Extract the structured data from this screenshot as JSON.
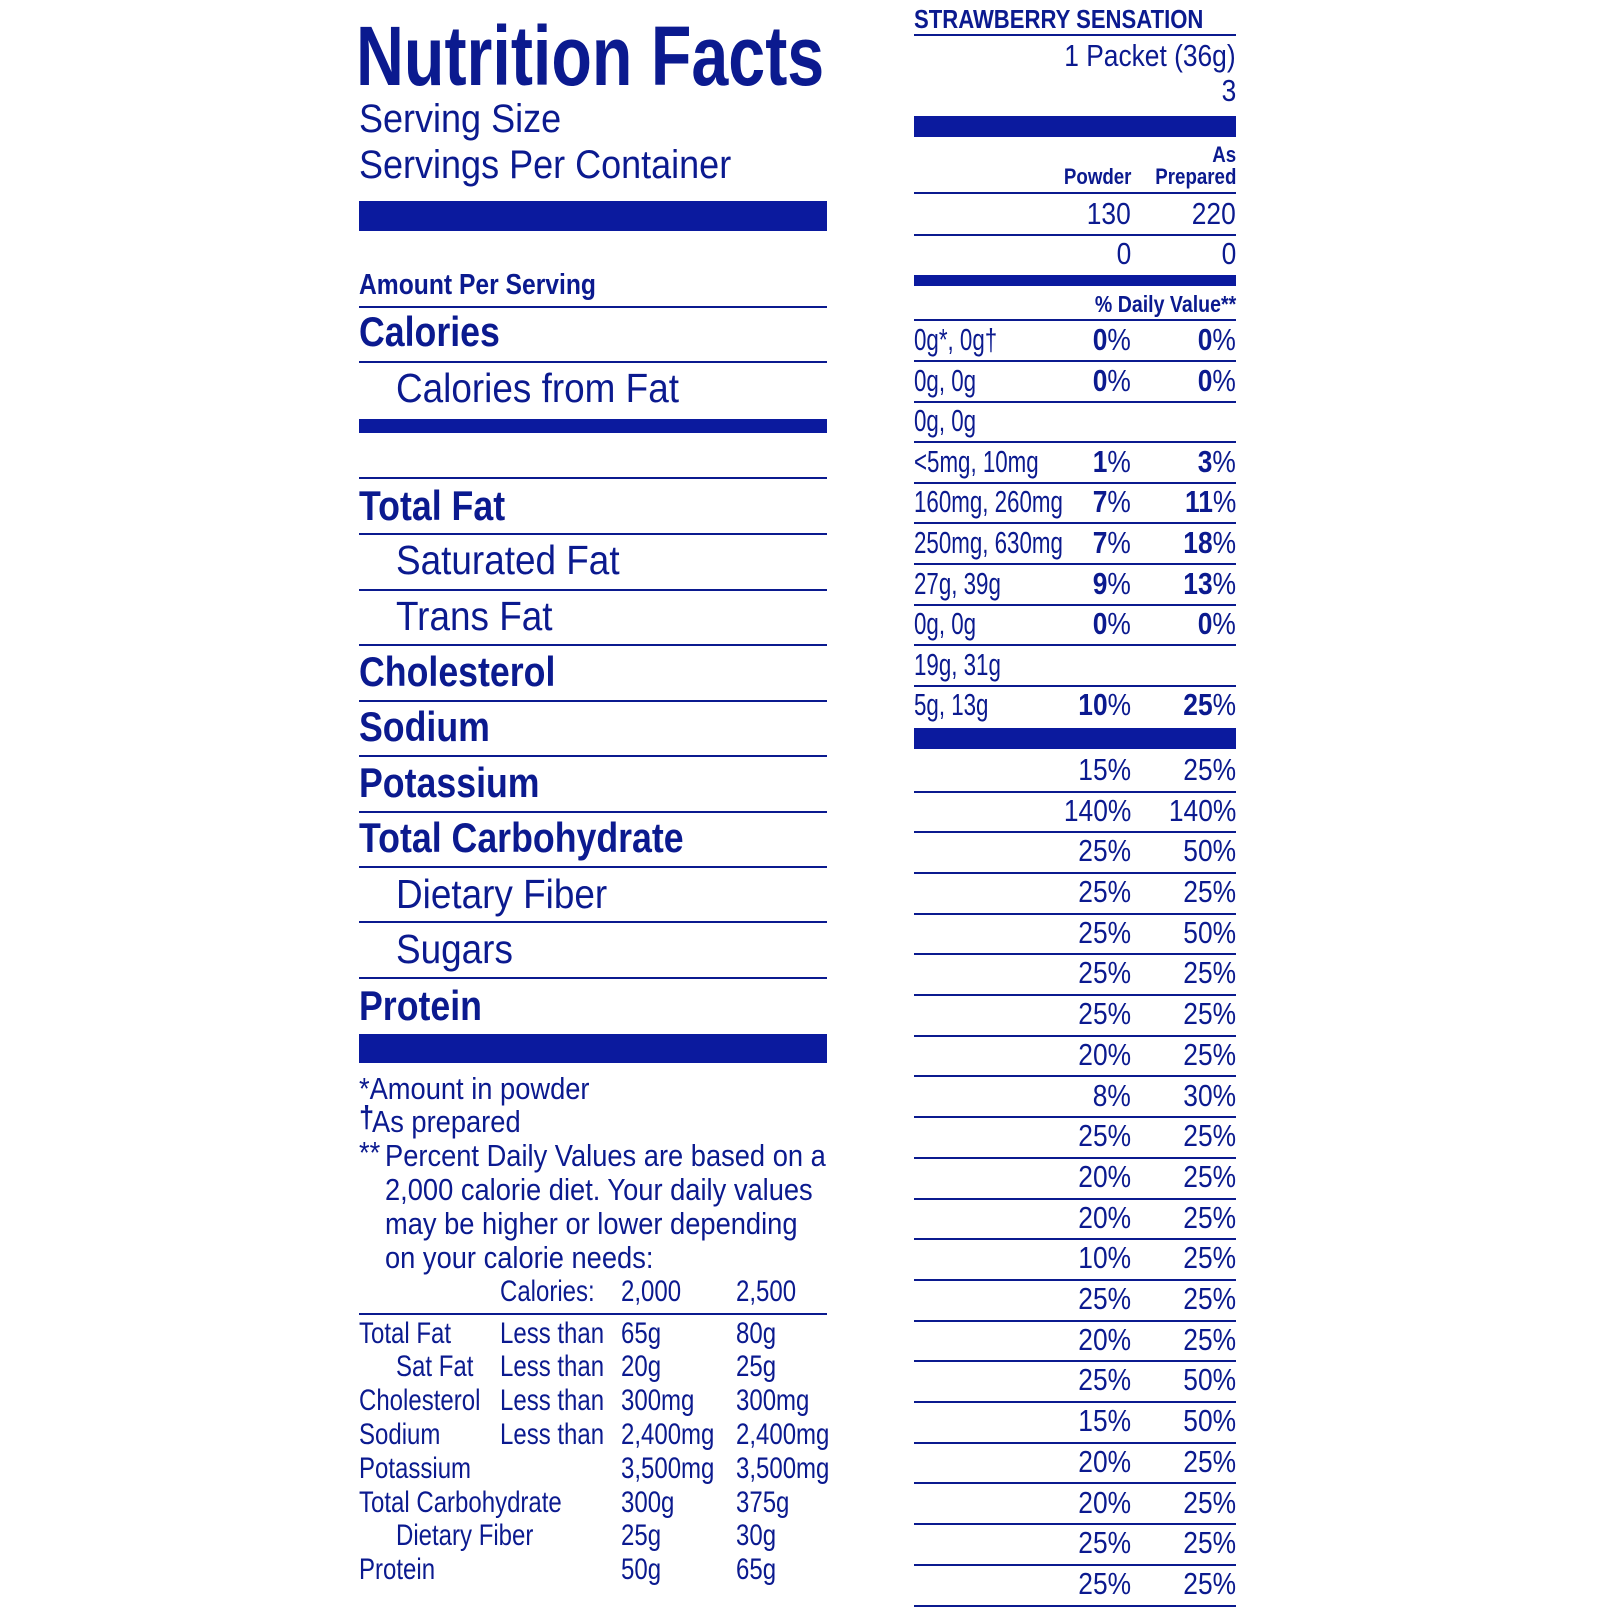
{
  "title": "Nutrition Facts",
  "serving_size_label": "Serving Size",
  "servings_per_container_label": "Servings Per Container",
  "amount_per_serving": "Amount Per Serving",
  "product_name": "STRAWBERRY SENSATION",
  "serving_size_value": "1 Packet (36g)",
  "servings_per_container_value": "3",
  "column_headers": {
    "powder": "Powder",
    "as_prepared_line1": "As",
    "as_prepared_line2": "Prepared",
    "daily_value": "% Daily Value**"
  },
  "colors": {
    "ink": "#0b1a8f",
    "bar": "#0b1a9e"
  },
  "nutrient_labels": [
    {
      "label": "Calories",
      "bold": true,
      "indent": false
    },
    {
      "label": "Calories from Fat",
      "bold": false,
      "indent": true
    },
    {
      "label": "Total Fat",
      "bold": true,
      "indent": false
    },
    {
      "label": "Saturated Fat",
      "bold": false,
      "indent": true
    },
    {
      "label": "Trans Fat",
      "bold": false,
      "indent": true
    },
    {
      "label": "Cholesterol",
      "bold": true,
      "indent": false
    },
    {
      "label": "Sodium",
      "bold": true,
      "indent": false
    },
    {
      "label": "Potassium",
      "bold": true,
      "indent": false
    },
    {
      "label": "Total Carbohydrate",
      "bold": true,
      "indent": false
    },
    {
      "label": "Dietary Fiber",
      "bold": false,
      "indent": true
    },
    {
      "label": "Sugars",
      "bold": false,
      "indent": true
    },
    {
      "label": "Protein",
      "bold": true,
      "indent": false
    }
  ],
  "calorie_values": [
    {
      "powder": "130",
      "prepared": "220"
    },
    {
      "powder": "0",
      "prepared": "0"
    }
  ],
  "nutrient_values": [
    {
      "amount": "0g*, 0g†",
      "dv_powder": "0",
      "dv_prepared": "0"
    },
    {
      "amount": "0g, 0g",
      "dv_powder": "0",
      "dv_prepared": "0"
    },
    {
      "amount": "0g, 0g",
      "dv_powder": "",
      "dv_prepared": ""
    },
    {
      "amount": "<5mg, 10mg",
      "dv_powder": "1",
      "dv_prepared": "3"
    },
    {
      "amount": "160mg, 260mg",
      "dv_powder": "7",
      "dv_prepared": "11"
    },
    {
      "amount": "250mg, 630mg",
      "dv_powder": "7",
      "dv_prepared": "18"
    },
    {
      "amount": "27g, 39g",
      "dv_powder": "9",
      "dv_prepared": "13"
    },
    {
      "amount": "0g, 0g",
      "dv_powder": "0",
      "dv_prepared": "0"
    },
    {
      "amount": "19g, 31g",
      "dv_powder": "",
      "dv_prepared": ""
    },
    {
      "amount": "5g, 13g",
      "dv_powder": "10",
      "dv_prepared": "25"
    }
  ],
  "vitamin_values": [
    {
      "powder": "15%",
      "prepared": "25%"
    },
    {
      "powder": "140%",
      "prepared": "140%"
    },
    {
      "powder": "25%",
      "prepared": "50%"
    },
    {
      "powder": "25%",
      "prepared": "25%"
    },
    {
      "powder": "25%",
      "prepared": "50%"
    },
    {
      "powder": "25%",
      "prepared": "25%"
    },
    {
      "powder": "25%",
      "prepared": "25%"
    },
    {
      "powder": "20%",
      "prepared": "25%"
    },
    {
      "powder": "8%",
      "prepared": "30%"
    },
    {
      "powder": "25%",
      "prepared": "25%"
    },
    {
      "powder": "20%",
      "prepared": "25%"
    },
    {
      "powder": "20%",
      "prepared": "25%"
    },
    {
      "powder": "10%",
      "prepared": "25%"
    },
    {
      "powder": "25%",
      "prepared": "25%"
    },
    {
      "powder": "20%",
      "prepared": "25%"
    },
    {
      "powder": "25%",
      "prepared": "50%"
    },
    {
      "powder": "15%",
      "prepared": "50%"
    },
    {
      "powder": "20%",
      "prepared": "25%"
    },
    {
      "powder": "20%",
      "prepared": "25%"
    },
    {
      "powder": "25%",
      "prepared": "25%"
    },
    {
      "powder": "25%",
      "prepared": "25%"
    }
  ],
  "footnotes": {
    "powder": "*Amount in powder",
    "prepared_mark": "†",
    "prepared": "As prepared",
    "dv_mark": "**",
    "dv_lines": [
      "Percent Daily Values are based on a",
      "2,000 calorie diet. Your daily values",
      "may be higher or lower depending",
      "on your calorie needs:"
    ]
  },
  "dv_table": {
    "header": {
      "label": "Calories:",
      "col1": "2,000",
      "col2": "2,500"
    },
    "rows": [
      {
        "nutrient": "Total Fat",
        "indent": false,
        "qualifier": "Less than",
        "col1": "65g",
        "col2": "80g"
      },
      {
        "nutrient": "Sat Fat",
        "indent": true,
        "qualifier": "Less than",
        "col1": "20g",
        "col2": "25g"
      },
      {
        "nutrient": "Cholesterol",
        "indent": false,
        "qualifier": "Less than",
        "col1": "300mg",
        "col2": "300mg"
      },
      {
        "nutrient": "Sodium",
        "indent": false,
        "qualifier": "Less than",
        "col1": "2,400mg",
        "col2": "2,400mg"
      },
      {
        "nutrient": "Potassium",
        "indent": false,
        "qualifier": "",
        "col1": "3,500mg",
        "col2": "3,500mg"
      },
      {
        "nutrient": "Total Carbohydrate",
        "indent": false,
        "qualifier": "",
        "col1": "300g",
        "col2": "375g"
      },
      {
        "nutrient": "Dietary Fiber",
        "indent": true,
        "qualifier": "",
        "col1": "25g",
        "col2": "30g"
      },
      {
        "nutrient": "Protein",
        "indent": false,
        "qualifier": "",
        "col1": "50g",
        "col2": "65g"
      }
    ]
  }
}
